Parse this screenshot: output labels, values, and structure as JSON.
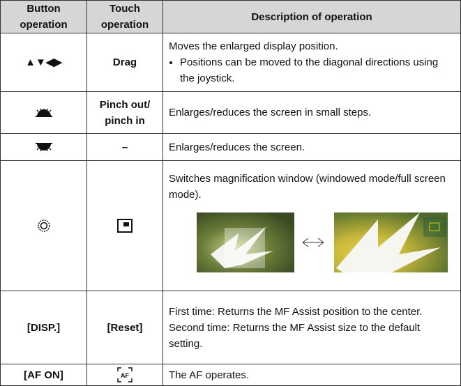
{
  "table": {
    "header": [
      [
        "Button",
        "operation"
      ],
      [
        "Touch",
        "operation"
      ],
      [
        "Description of operation"
      ]
    ],
    "rows": [
      {
        "button": "▲▼◀▶",
        "touch": [
          "Drag"
        ],
        "description": [
          "Moves the enlarged display position."
        ],
        "bullets": [
          "Positions can be moved to the diagonal directions using the joystick."
        ]
      },
      {
        "touch": [
          "Pinch out/",
          "pinch in"
        ],
        "description": [
          "Enlarges/reduces the screen in small steps."
        ]
      },
      {
        "touch": [
          "–"
        ],
        "description": [
          "Enlarges/reduces the screen."
        ]
      },
      {
        "description": [
          "Switches magnification window (windowed mode/full screen mode)."
        ]
      },
      {
        "button": "[DISP.]",
        "touch": [
          "[Reset]"
        ],
        "description": [
          "First time: Returns the MF Assist position to the center.",
          "Second time: Returns the MF Assist size to the default setting."
        ]
      },
      {
        "button": "[AF ON]",
        "touch_icon": "AF",
        "description": [
          "The AF operates."
        ]
      }
    ]
  }
}
